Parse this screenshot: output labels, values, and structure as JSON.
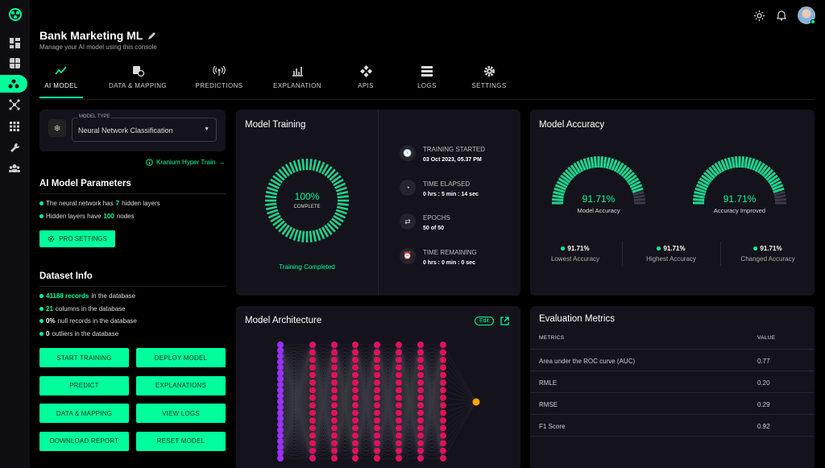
{
  "app": {
    "title": "Bank Marketing ML",
    "subtitle": "Manage your AI model using this console"
  },
  "nav_rail": [
    "dashboard-icon",
    "grid-icon",
    "ai-nodes-icon",
    "network-icon",
    "apps-icon",
    "wrench-icon",
    "users-icon"
  ],
  "tabs": [
    {
      "label": "AI MODEL",
      "icon": "trend-icon",
      "active": true
    },
    {
      "label": "DATA & MAPPING",
      "icon": "data-mapping-icon"
    },
    {
      "label": "PREDICTIONS",
      "icon": "broadcast-icon"
    },
    {
      "label": "EXPLANATION",
      "icon": "chart-explain-icon"
    },
    {
      "label": "APIS",
      "icon": "api-icon"
    },
    {
      "label": "LOGS",
      "icon": "logs-icon"
    },
    {
      "label": "SETTINGS",
      "icon": "gear-icon"
    }
  ],
  "model_type": {
    "label": "MODEL TYPE",
    "value": "Neural Network Classification"
  },
  "hyper_train_link": "Kranium Hyper Train",
  "params": {
    "heading": "AI Model Parameters",
    "line1": {
      "pre": "The neural network has ",
      "num": "7",
      "post": " hidden layers"
    },
    "line2": {
      "pre": "Hidden layers have ",
      "num": "100",
      "post": " nodes"
    },
    "pro_button": "PRO SETTINGS"
  },
  "dataset": {
    "heading": "Dataset Info",
    "lines": [
      {
        "num": "41188 records",
        "post": " in the database"
      },
      {
        "num": "21",
        "post": " columns in the database"
      },
      {
        "num": "0%",
        "post": " null records in the database"
      },
      {
        "num": "0",
        "post": " outliers in the database"
      }
    ]
  },
  "actions": [
    "START TRAINING",
    "DEPLOY MODEL",
    "PREDICT",
    "EXPLANATIONS",
    "DATA & MAPPING",
    "VIEW LOGS",
    "DOWNLOAD REPORT",
    "RESET MODEL"
  ],
  "training": {
    "title": "Model Training",
    "percent": "100%",
    "progress_fraction": 1.0,
    "complete_label": "COMPLETE",
    "status": "Training Completed",
    "stats": [
      {
        "label": "TRAINING STARTED",
        "value": "03 Oct 2023, 05.37 PM",
        "icon": "clock-icon"
      },
      {
        "label": "TIME ELAPSED",
        "value": "0 hrs : 5 min : 14 sec",
        "icon": "timer-icon"
      },
      {
        "label": "EPOCHS",
        "value": "50 of 50",
        "icon": "repeat-icon"
      },
      {
        "label": "TIME REMAINING",
        "value": "0 hrs : 0 min : 0 sec",
        "icon": "alarm-icon"
      }
    ]
  },
  "accuracy": {
    "title": "Model Accuracy",
    "gauges": [
      {
        "value": "91.71%",
        "fraction": 0.9171,
        "label": "Model Accuracy"
      },
      {
        "value": "91.71%",
        "fraction": 0.9171,
        "label": "Accuracy Improved"
      }
    ],
    "stats": [
      {
        "value": "91.71%",
        "label": "Lowest Accuracy"
      },
      {
        "value": "91.71%",
        "label": "Highest Accuracy"
      },
      {
        "value": "91.71%",
        "label": "Changed Accuracy"
      }
    ]
  },
  "architecture": {
    "title": "Model Architecture",
    "edit_label": "Edit",
    "layer_colors": {
      "input": "#9b30ff",
      "hidden": "#e0125a",
      "output": "#ffa500"
    }
  },
  "metrics": {
    "title": "Evaluation Metrics",
    "col_metric": "METRICS",
    "col_value": "VALUE",
    "rows": [
      {
        "name": "Area under the ROC curve (AUC)",
        "value": "0.77"
      },
      {
        "name": "RMLE",
        "value": "0.20"
      },
      {
        "name": "RMSE",
        "value": "0.29"
      },
      {
        "name": "F1 Score",
        "value": "0.92"
      }
    ]
  },
  "colors": {
    "accent": "#00ff9c",
    "panel": "#14131b",
    "background": "#000000"
  }
}
